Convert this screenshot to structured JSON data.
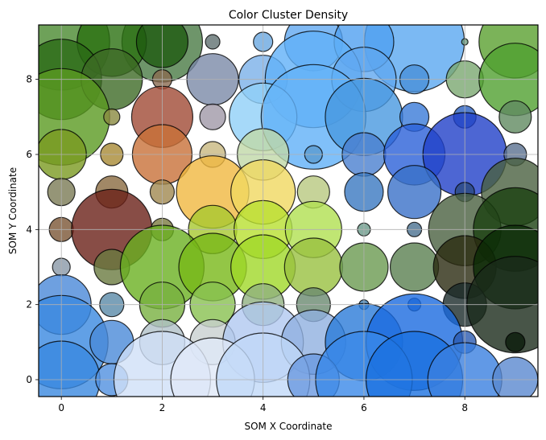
{
  "chart_data": {
    "type": "scatter",
    "title": "Color Cluster Density",
    "xlabel": "SOM X Coordinate",
    "ylabel": "SOM Y Coordinate",
    "xlim": [
      -0.45,
      9.45
    ],
    "ylim": [
      -0.45,
      9.45
    ],
    "xticks": [
      0,
      2,
      4,
      6,
      8
    ],
    "yticks": [
      0,
      2,
      4,
      6,
      8
    ],
    "grid": true,
    "legend": null,
    "marker": "bubble (size = density, color = cluster color)",
    "points": [
      {
        "x": 0,
        "y": 9,
        "r": 60,
        "color": "#4a8a30"
      },
      {
        "x": 2,
        "y": 9,
        "r": 50,
        "color": "#4a7a45"
      },
      {
        "x": 1,
        "y": 9,
        "r": 43,
        "color": "#2a7010"
      },
      {
        "x": 2,
        "y": 9,
        "r": 32,
        "color": "#1e5a10"
      },
      {
        "x": 3,
        "y": 9,
        "r": 9,
        "color": "#607070"
      },
      {
        "x": 4,
        "y": 9,
        "r": 12,
        "color": "#6aa8e0"
      },
      {
        "x": 7,
        "y": 9,
        "r": 62,
        "color": "#5aa8f0"
      },
      {
        "x": 5,
        "y": 9,
        "r": 36,
        "color": "#60a8f0"
      },
      {
        "x": 6,
        "y": 9,
        "r": 37,
        "color": "#50a0f0"
      },
      {
        "x": 8,
        "y": 9,
        "r": 4,
        "color": "#6a9a7a"
      },
      {
        "x": 9,
        "y": 9,
        "r": 45,
        "color": "#5aa030"
      },
      {
        "x": 0,
        "y": 8,
        "r": 50,
        "color": "#2a6a15"
      },
      {
        "x": 1,
        "y": 8,
        "r": 38,
        "color": "#3d6a25"
      },
      {
        "x": 2,
        "y": 8,
        "r": 12,
        "color": "#8a6a50"
      },
      {
        "x": 3,
        "y": 8,
        "r": 32,
        "color": "#7a8aa8"
      },
      {
        "x": 4,
        "y": 8,
        "r": 30,
        "color": "#7ab0e8"
      },
      {
        "x": 5,
        "y": 8,
        "r": 60,
        "color": "#60b0f8"
      },
      {
        "x": 6,
        "y": 8,
        "r": 40,
        "color": "#60a8f0"
      },
      {
        "x": 7,
        "y": 8,
        "r": 18,
        "color": "#4a90d8"
      },
      {
        "x": 8,
        "y": 8,
        "r": 23,
        "color": "#7aa870"
      },
      {
        "x": 9,
        "y": 8,
        "r": 45,
        "color": "#50a030"
      },
      {
        "x": 0,
        "y": 7,
        "r": 60,
        "color": "#5a9a20"
      },
      {
        "x": 1,
        "y": 7,
        "r": 10,
        "color": "#8a8a40"
      },
      {
        "x": 2,
        "y": 7,
        "r": 38,
        "color": "#a04a35"
      },
      {
        "x": 3,
        "y": 7,
        "r": 16,
        "color": "#a098a8"
      },
      {
        "x": 4,
        "y": 7,
        "r": 42,
        "color": "#90d0f8"
      },
      {
        "x": 5,
        "y": 7,
        "r": 65,
        "color": "#60b0f8"
      },
      {
        "x": 6,
        "y": 7,
        "r": 48,
        "color": "#4898e0"
      },
      {
        "x": 7,
        "y": 7,
        "r": 18,
        "color": "#3a7ad8"
      },
      {
        "x": 8,
        "y": 7,
        "r": 14,
        "color": "#2a60c0"
      },
      {
        "x": 9,
        "y": 7,
        "r": 20,
        "color": "#608a60"
      },
      {
        "x": 0,
        "y": 6,
        "r": 31,
        "color": "#7a9a20"
      },
      {
        "x": 1,
        "y": 6,
        "r": 14,
        "color": "#a88a35"
      },
      {
        "x": 2,
        "y": 6,
        "r": 37,
        "color": "#c87038"
      },
      {
        "x": 3,
        "y": 6,
        "r": 16,
        "color": "#c8b880"
      },
      {
        "x": 4,
        "y": 6,
        "r": 32,
        "color": "#c0d8a8"
      },
      {
        "x": 5,
        "y": 6,
        "r": 11,
        "color": "#5a9ad0"
      },
      {
        "x": 6,
        "y": 6,
        "r": 27,
        "color": "#4a80d0"
      },
      {
        "x": 7,
        "y": 6,
        "r": 38,
        "color": "#2a60d8"
      },
      {
        "x": 8,
        "y": 6,
        "r": 52,
        "color": "#2040c8"
      },
      {
        "x": 9,
        "y": 6,
        "r": 14,
        "color": "#5a7090"
      },
      {
        "x": 0,
        "y": 5,
        "r": 17,
        "color": "#7a7a55"
      },
      {
        "x": 1,
        "y": 5,
        "r": 20,
        "color": "#8a6a40"
      },
      {
        "x": 2,
        "y": 5,
        "r": 15,
        "color": "#a08850"
      },
      {
        "x": 3,
        "y": 5,
        "r": 45,
        "color": "#f0b840"
      },
      {
        "x": 4,
        "y": 5,
        "r": 40,
        "color": "#f0d860"
      },
      {
        "x": 5,
        "y": 5,
        "r": 20,
        "color": "#b8c880"
      },
      {
        "x": 6,
        "y": 5,
        "r": 24,
        "color": "#3a78c0"
      },
      {
        "x": 7,
        "y": 5,
        "r": 33,
        "color": "#3a70c8"
      },
      {
        "x": 8,
        "y": 5,
        "r": 12,
        "color": "#2a4a80"
      },
      {
        "x": 9,
        "y": 5,
        "r": 42,
        "color": "#4a6040"
      },
      {
        "x": 0,
        "y": 4,
        "r": 15,
        "color": "#7a5535"
      },
      {
        "x": 1,
        "y": 4,
        "r": 50,
        "color": "#6a2018"
      },
      {
        "x": 2,
        "y": 4,
        "r": 14,
        "color": "#7a7a40"
      },
      {
        "x": 3,
        "y": 4,
        "r": 30,
        "color": "#a8c830"
      },
      {
        "x": 4,
        "y": 4,
        "r": 36,
        "color": "#b8e030"
      },
      {
        "x": 5,
        "y": 4,
        "r": 35,
        "color": "#b0e050"
      },
      {
        "x": 6,
        "y": 4,
        "r": 8,
        "color": "#6a9a8a"
      },
      {
        "x": 7,
        "y": 4,
        "r": 9,
        "color": "#4a7090"
      },
      {
        "x": 8,
        "y": 4,
        "r": 45,
        "color": "#4a6040"
      },
      {
        "x": 9,
        "y": 4,
        "r": 52,
        "color": "#1a4010"
      },
      {
        "x": 0,
        "y": 3,
        "r": 11,
        "color": "#8a98a8"
      },
      {
        "x": 1,
        "y": 3,
        "r": 22,
        "color": "#6a7a40"
      },
      {
        "x": 2,
        "y": 3,
        "r": 52,
        "color": "#6ab020"
      },
      {
        "x": 3,
        "y": 3,
        "r": 42,
        "color": "#78b818"
      },
      {
        "x": 4,
        "y": 3,
        "r": 40,
        "color": "#a0d828"
      },
      {
        "x": 5,
        "y": 3,
        "r": 36,
        "color": "#98c040"
      },
      {
        "x": 6,
        "y": 3,
        "r": 30,
        "color": "#6a9a50"
      },
      {
        "x": 7,
        "y": 3,
        "r": 30,
        "color": "#5a8050"
      },
      {
        "x": 8,
        "y": 3,
        "r": 39,
        "color": "#2a2a10"
      },
      {
        "x": 9,
        "y": 3,
        "r": 52,
        "color": "#0a2a05"
      },
      {
        "x": 0,
        "y": 2,
        "r": 37,
        "color": "#4a88d8"
      },
      {
        "x": 1,
        "y": 2,
        "r": 15,
        "color": "#5a8aa8"
      },
      {
        "x": 2,
        "y": 2,
        "r": 28,
        "color": "#78b040"
      },
      {
        "x": 3,
        "y": 2,
        "r": 28,
        "color": "#88c050"
      },
      {
        "x": 4,
        "y": 2,
        "r": 26,
        "color": "#90b080"
      },
      {
        "x": 5,
        "y": 2,
        "r": 21,
        "color": "#6a8a70"
      },
      {
        "x": 6,
        "y": 2,
        "r": 6,
        "color": "#3a7ab0"
      },
      {
        "x": 7,
        "y": 2,
        "r": 8,
        "color": "#2060c0"
      },
      {
        "x": 8,
        "y": 2,
        "r": 27,
        "color": "#1a2a2a"
      },
      {
        "x": 9,
        "y": 2,
        "r": 60,
        "color": "#1a2a1a"
      },
      {
        "x": 0,
        "y": 1,
        "r": 58,
        "color": "#3a88e0"
      },
      {
        "x": 1,
        "y": 1,
        "r": 27,
        "color": "#4a8ad8"
      },
      {
        "x": 2,
        "y": 1,
        "r": 28,
        "color": "#b0c0c8"
      },
      {
        "x": 3,
        "y": 1,
        "r": 28,
        "color": "#c8d0d0"
      },
      {
        "x": 4,
        "y": 1,
        "r": 50,
        "color": "#b0c8f0"
      },
      {
        "x": 5,
        "y": 1,
        "r": 40,
        "color": "#90b0e0"
      },
      {
        "x": 6,
        "y": 1,
        "r": 48,
        "color": "#2a7ad8"
      },
      {
        "x": 7,
        "y": 1,
        "r": 60,
        "color": "#1a6ae0"
      },
      {
        "x": 8,
        "y": 1,
        "r": 14,
        "color": "#2a5ab0"
      },
      {
        "x": 9,
        "y": 1,
        "r": 12,
        "color": "#0a1a0a"
      },
      {
        "x": 0,
        "y": 0,
        "r": 48,
        "color": "#3a88e0"
      },
      {
        "x": 1,
        "y": 0,
        "r": 20,
        "color": "#5090e0"
      },
      {
        "x": 2,
        "y": 0,
        "r": 60,
        "color": "#d0e0f8"
      },
      {
        "x": 3,
        "y": 0,
        "r": 52,
        "color": "#e0e8f8"
      },
      {
        "x": 4,
        "y": 0,
        "r": 58,
        "color": "#c0d8f8"
      },
      {
        "x": 5,
        "y": 0,
        "r": 32,
        "color": "#6a98e0"
      },
      {
        "x": 6,
        "y": 0,
        "r": 60,
        "color": "#3a88e8"
      },
      {
        "x": 7,
        "y": 0,
        "r": 60,
        "color": "#1a70e0"
      },
      {
        "x": 8,
        "y": 0,
        "r": 46,
        "color": "#3a80e0"
      },
      {
        "x": 9,
        "y": 0,
        "r": 28,
        "color": "#5a88d0"
      }
    ]
  }
}
